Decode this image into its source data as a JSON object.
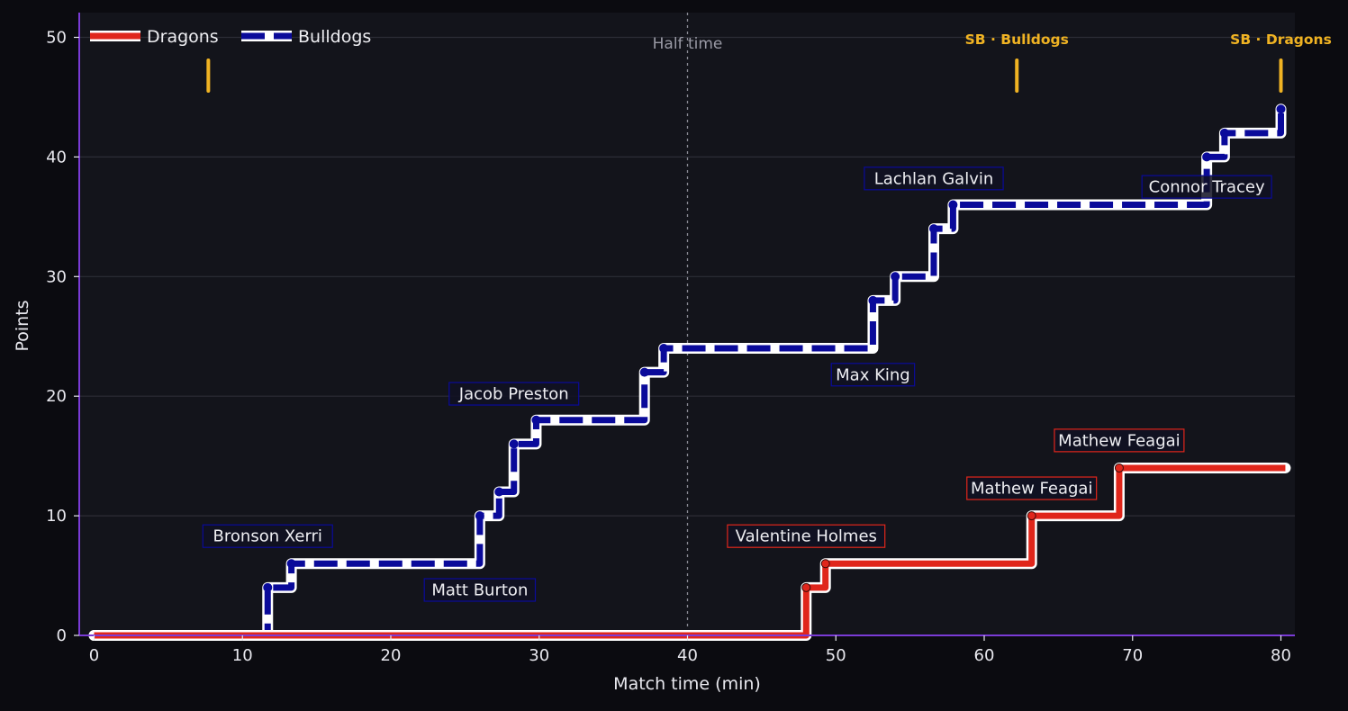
{
  "chart_data": {
    "type": "line",
    "title": "",
    "xlabel": "Match time (min)",
    "ylabel": "Points",
    "xlim": [
      -1,
      81
    ],
    "ylim": [
      0,
      52
    ],
    "x_ticks": [
      0,
      10,
      20,
      30,
      40,
      50,
      60,
      70,
      80
    ],
    "y_ticks": [
      0,
      10,
      20,
      30,
      40,
      50
    ],
    "grid": "horizontal",
    "legend_position": "top-left",
    "half_time": {
      "x": 40,
      "label": "Half time"
    },
    "series": [
      {
        "name": "Dragons",
        "color": "#e0261b",
        "style": "solid",
        "step_points": [
          [
            0,
            0
          ],
          [
            48,
            4
          ],
          [
            49.3,
            6
          ],
          [
            63.2,
            10
          ],
          [
            69.1,
            14
          ],
          [
            80.3,
            14
          ]
        ],
        "score_points": [
          [
            48,
            4
          ],
          [
            49.3,
            6
          ],
          [
            63.2,
            10
          ],
          [
            69.1,
            14
          ]
        ]
      },
      {
        "name": "Bulldogs",
        "color": "#0a0a9a",
        "style": "dashed",
        "step_points": [
          [
            0,
            0
          ],
          [
            11.7,
            4
          ],
          [
            13.3,
            6
          ],
          [
            26,
            10
          ],
          [
            27.3,
            12
          ],
          [
            28.3,
            16
          ],
          [
            29.8,
            18
          ],
          [
            37.1,
            22
          ],
          [
            38.4,
            24
          ],
          [
            52.5,
            28
          ],
          [
            54,
            30
          ],
          [
            56.6,
            34
          ],
          [
            57.9,
            36
          ],
          [
            75,
            40
          ],
          [
            76.2,
            42
          ],
          [
            80,
            44
          ]
        ],
        "score_points": [
          [
            11.7,
            4
          ],
          [
            13.3,
            6
          ],
          [
            26,
            10
          ],
          [
            27.3,
            12
          ],
          [
            28.3,
            16
          ],
          [
            29.8,
            18
          ],
          [
            37.1,
            22
          ],
          [
            38.4,
            24
          ],
          [
            52.5,
            28
          ],
          [
            54,
            30
          ],
          [
            56.6,
            34
          ],
          [
            57.9,
            36
          ],
          [
            75,
            40
          ],
          [
            76.2,
            42
          ],
          [
            80,
            44
          ]
        ]
      }
    ],
    "annotations": [
      {
        "text": "Bronson Xerri",
        "team": "Bulldogs",
        "x": 11.7,
        "y": 8.3
      },
      {
        "text": "Matt Burton",
        "team": "Bulldogs",
        "x": 26,
        "y": 3.8
      },
      {
        "text": "Jacob Preston",
        "team": "Bulldogs",
        "x": 28.3,
        "y": 20.2
      },
      {
        "text": "Max King",
        "team": "Bulldogs",
        "x": 52.5,
        "y": 21.8
      },
      {
        "text": "Lachlan Galvin",
        "team": "Bulldogs",
        "x": 56.6,
        "y": 38.2
      },
      {
        "text": "Connor Tracey",
        "team": "Bulldogs",
        "x": 75,
        "y": 37.5
      },
      {
        "text": "Valentine Holmes",
        "team": "Dragons",
        "x": 48,
        "y": 8.3
      },
      {
        "text": "Mathew Feagai",
        "team": "Dragons",
        "x": 63.2,
        "y": 12.3
      },
      {
        "text": "Mathew Feagai",
        "team": "Dragons",
        "x": 69.1,
        "y": 16.3
      }
    ],
    "sin_bins": [
      {
        "x": 7.7,
        "label": ""
      },
      {
        "x": 62.2,
        "label": "SB · Bulldogs"
      },
      {
        "x": 80,
        "label": "SB · Dragons"
      }
    ],
    "sin_bin_color": "#f0b323"
  }
}
